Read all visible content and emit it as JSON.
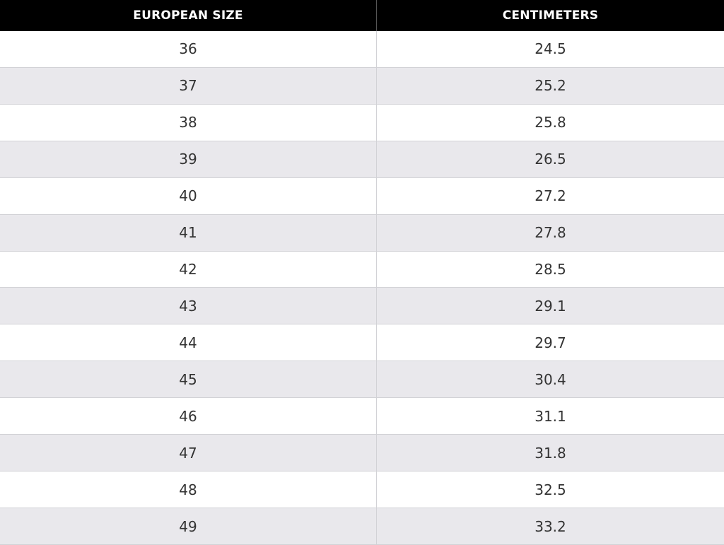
{
  "table": {
    "header": [
      "EUROPEAN SIZE",
      "CENTIMETERS"
    ],
    "rows": [
      [
        36,
        24.5
      ],
      [
        37,
        25.2
      ],
      [
        38,
        25.8
      ],
      [
        39,
        26.5
      ],
      [
        40,
        27.2
      ],
      [
        41,
        27.8
      ],
      [
        42,
        28.5
      ],
      [
        43,
        29.1
      ],
      [
        44,
        29.7
      ],
      [
        45,
        30.4
      ],
      [
        46,
        31.1
      ],
      [
        47,
        31.8
      ],
      [
        48,
        32.5
      ],
      [
        49,
        33.2
      ]
    ]
  }
}
